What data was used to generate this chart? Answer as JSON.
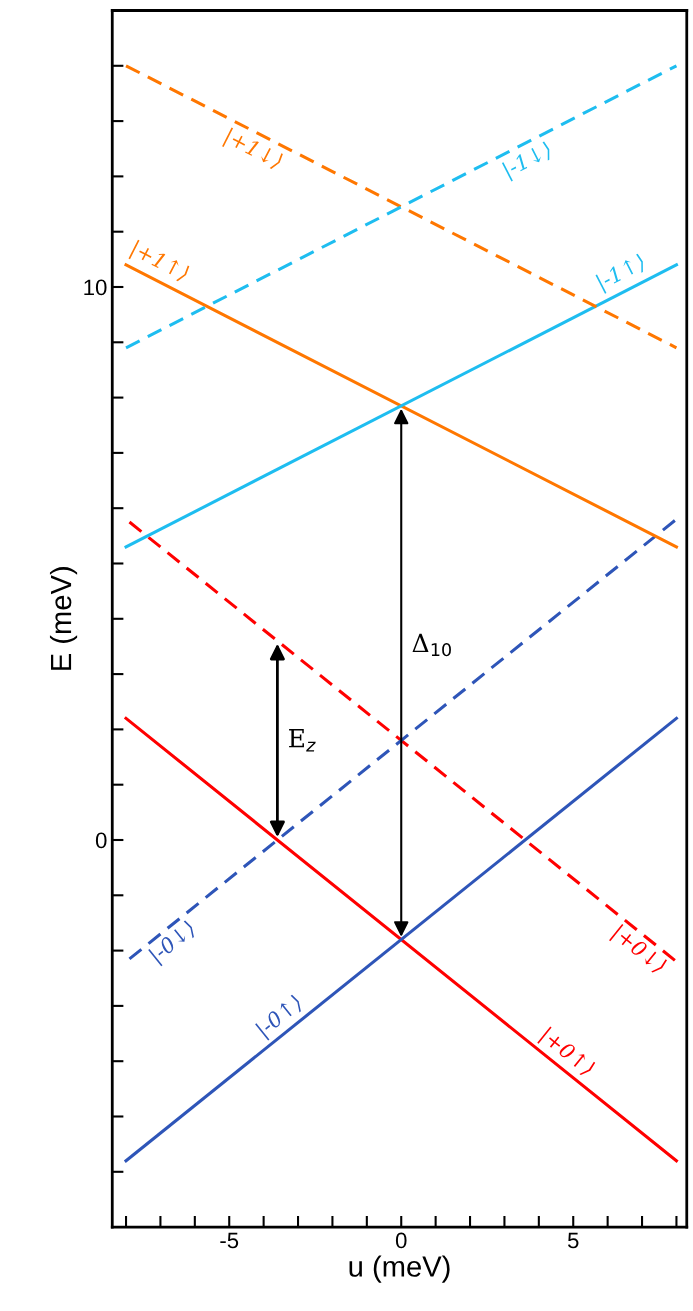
{
  "chart_data": {
    "type": "line",
    "xlabel": "u (meV)",
    "ylabel": "E (meV)",
    "xlim": [
      -8.4,
      8.3
    ],
    "ylim": [
      -7,
      15
    ],
    "xticks": [
      {
        "value": -8,
        "label": null
      },
      {
        "value": -7,
        "label": null
      },
      {
        "value": -6,
        "label": null
      },
      -5,
      {
        "value": -4,
        "label": null
      },
      {
        "value": -3,
        "label": null
      },
      {
        "value": -2,
        "label": null
      },
      {
        "value": -1,
        "label": null
      },
      0,
      {
        "value": 1,
        "label": null
      },
      {
        "value": 2,
        "label": null
      },
      {
        "value": 3,
        "label": null
      },
      {
        "value": 4,
        "label": null
      },
      5,
      {
        "value": 6,
        "label": null
      },
      {
        "value": 7,
        "label": null
      },
      {
        "value": 8,
        "label": null
      }
    ],
    "yticks": [
      {
        "value": -6,
        "label": null
      },
      {
        "value": -5,
        "label": null
      },
      {
        "value": -4,
        "label": null
      },
      {
        "value": -3,
        "label": null
      },
      {
        "value": -2,
        "label": null
      },
      {
        "value": -1,
        "label": null
      },
      0,
      {
        "value": 1,
        "label": null
      },
      {
        "value": 2,
        "label": null
      },
      {
        "value": 3,
        "label": null
      },
      {
        "value": 4,
        "label": null
      },
      {
        "value": 5,
        "label": null
      },
      {
        "value": 6,
        "label": null
      },
      {
        "value": 7,
        "label": null
      },
      {
        "value": 8,
        "label": null
      },
      {
        "value": 9,
        "label": null
      },
      10,
      {
        "value": 11,
        "label": null
      },
      {
        "value": 12,
        "label": null
      },
      {
        "value": 13,
        "label": null
      },
      {
        "value": 14,
        "label": null
      }
    ],
    "grid": false,
    "legend": false,
    "marker": "none",
    "series": [
      {
        "name": "|+0↑⟩",
        "color": "#ff0000",
        "line_style": "solid",
        "x": [
          -8,
          8
        ],
        "values": [
          2.2,
          -5.8
        ]
      },
      {
        "name": "|-0↑⟩",
        "color": "#2e55b8",
        "line_style": "solid",
        "x": [
          -8,
          8
        ],
        "values": [
          -5.8,
          2.2
        ]
      },
      {
        "name": "|+0↓⟩",
        "color": "#ff0000",
        "line_style": "dashed",
        "x": [
          -7.9,
          8
        ],
        "values": [
          5.75,
          -2.2
        ]
      },
      {
        "name": "|-0↓⟩",
        "color": "#2e55b8",
        "line_style": "dashed",
        "x": [
          -7.9,
          8
        ],
        "values": [
          -2.15,
          5.8
        ]
      },
      {
        "name": "|+1↑⟩",
        "color": "#ff7700",
        "line_style": "solid",
        "x": [
          -8,
          8
        ],
        "values": [
          10.4,
          5.3
        ]
      },
      {
        "name": "|-1↑⟩",
        "color": "#1ebdf0",
        "line_style": "solid",
        "x": [
          -8,
          8
        ],
        "values": [
          5.3,
          10.4
        ]
      },
      {
        "name": "|+1↓⟩",
        "color": "#ff7700",
        "line_style": "dashed",
        "x": [
          -8,
          8
        ],
        "values": [
          14.0,
          8.9
        ]
      },
      {
        "name": "|-1↓⟩",
        "color": "#1ebdf0",
        "line_style": "dashed",
        "x": [
          -8,
          8
        ],
        "values": [
          8.9,
          14.0
        ]
      }
    ],
    "annotations": [
      "E$_{z}$",
      "Δ$_{10}$"
    ]
  }
}
